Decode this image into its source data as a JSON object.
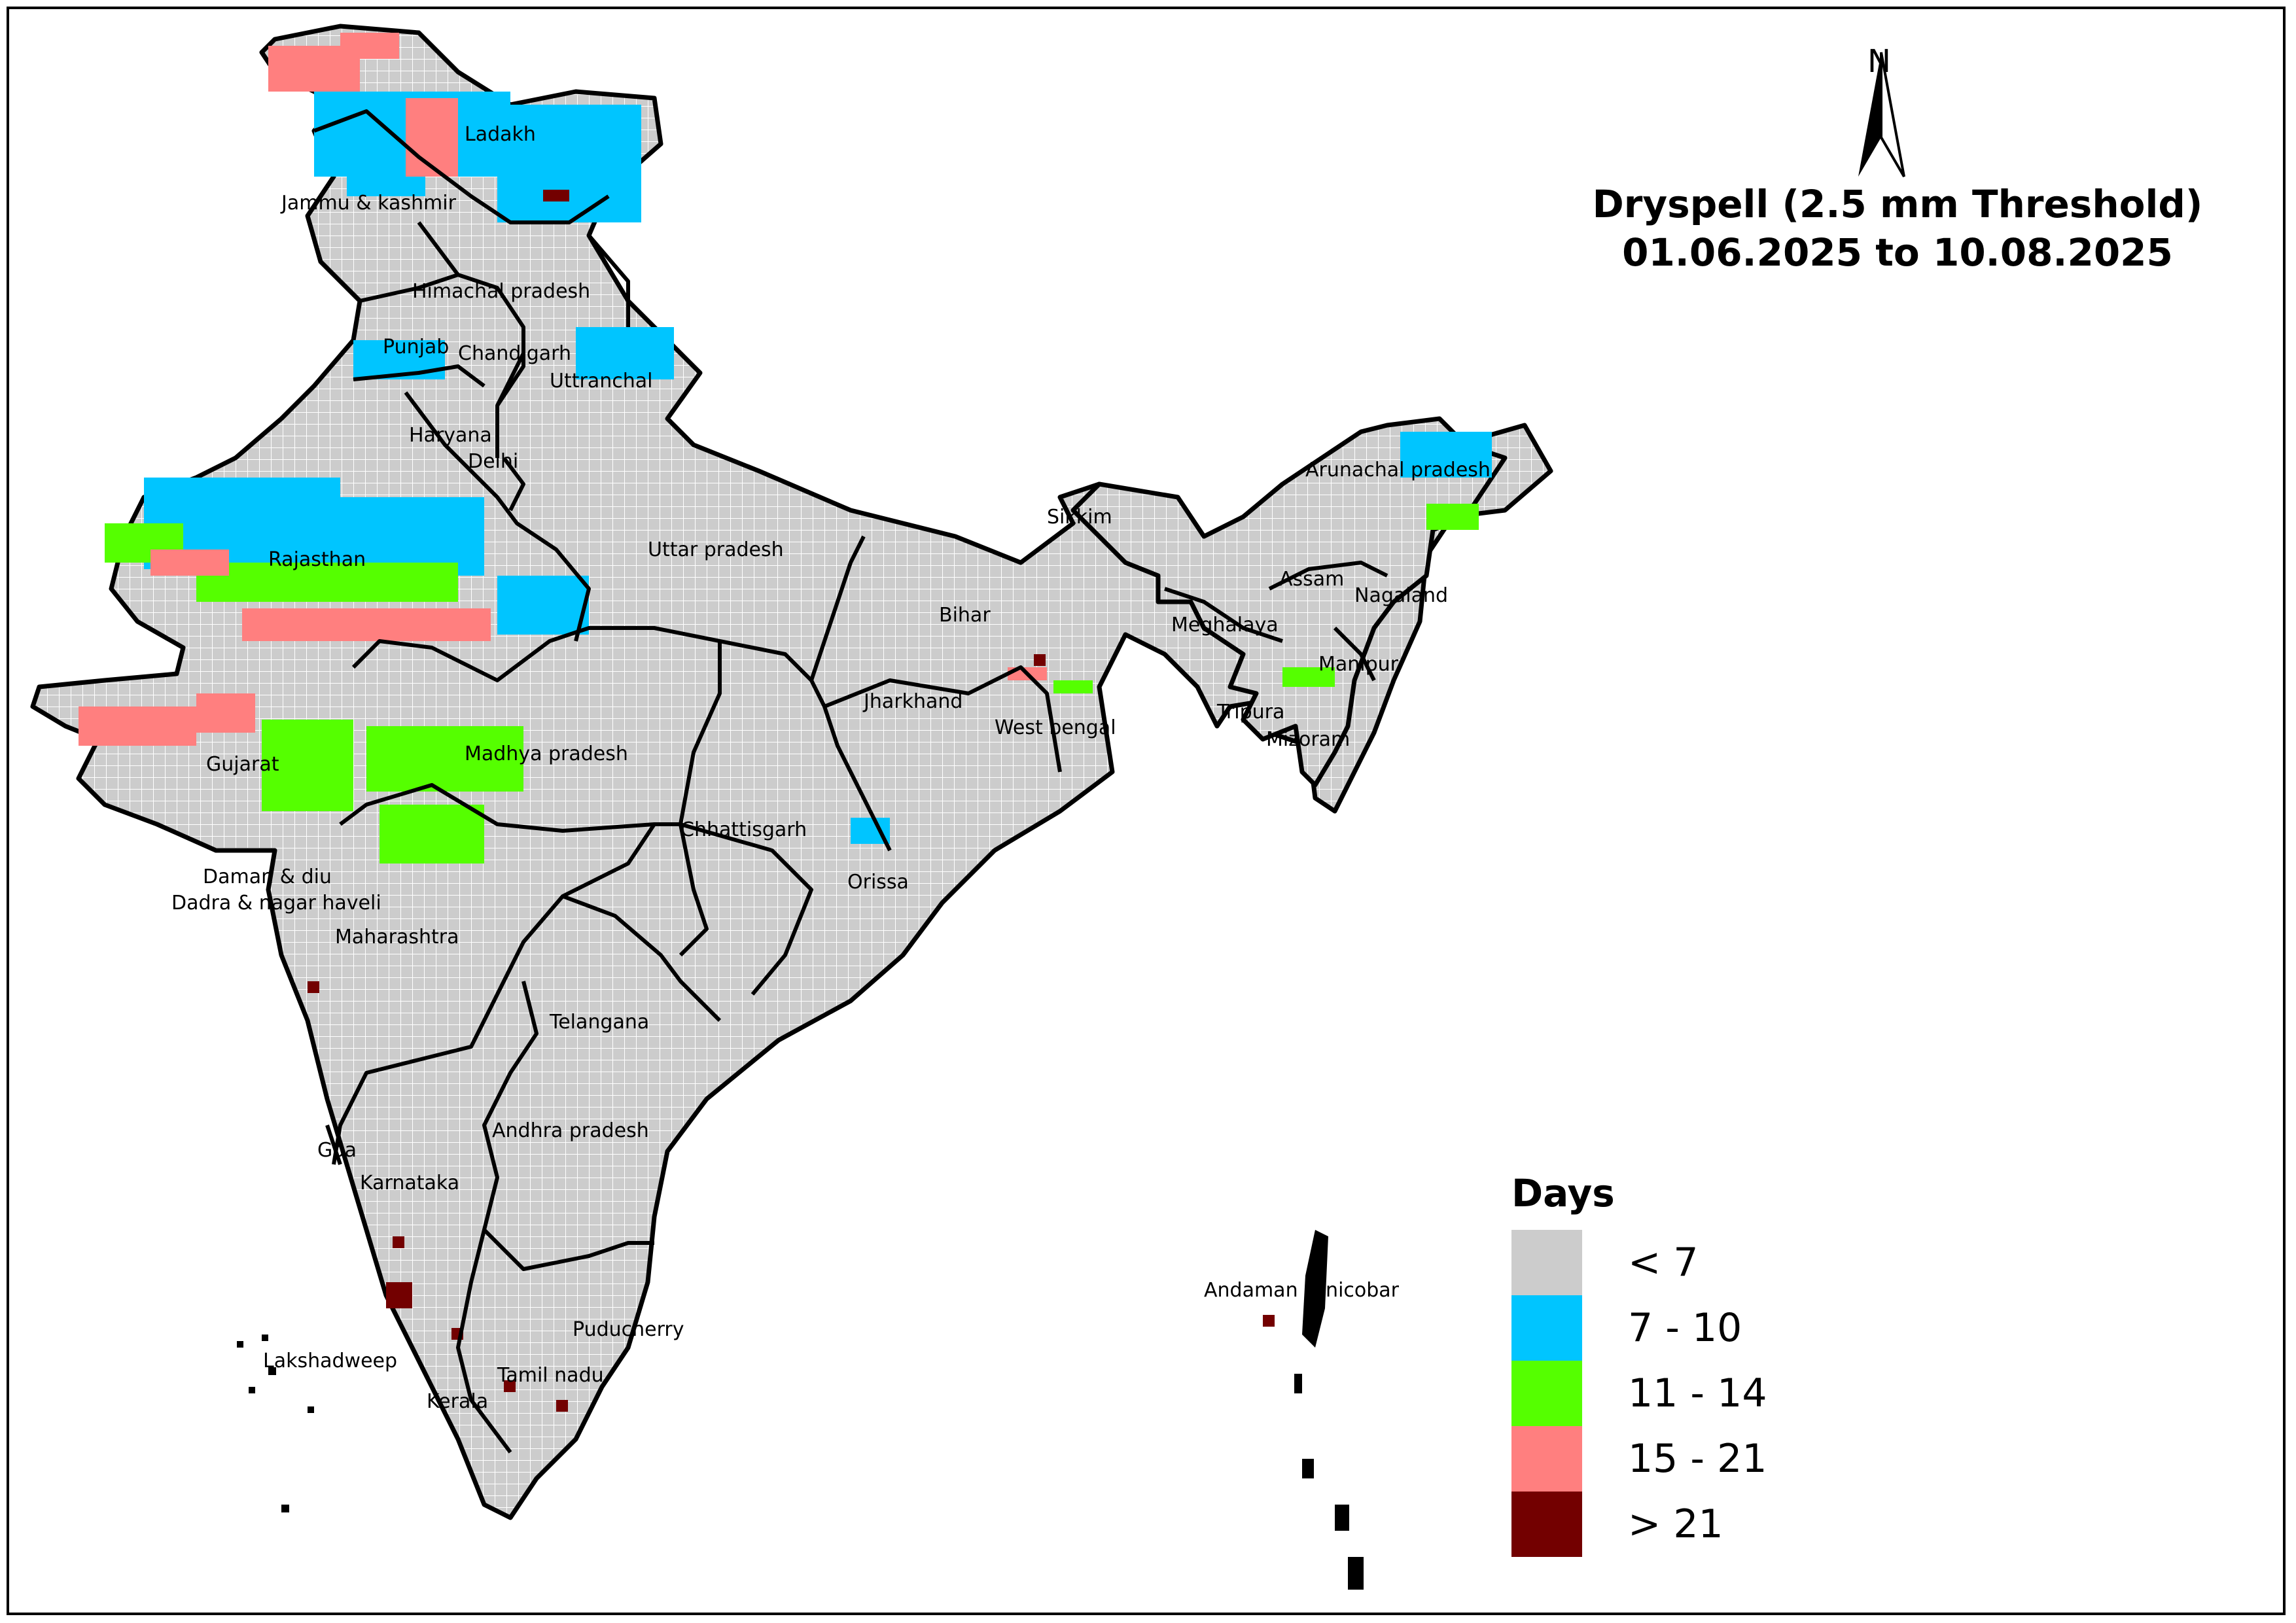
{
  "title": {
    "line1": "Dryspell (2.5 mm Threshold)",
    "line2": "01.06.2025 to 10.08.2025"
  },
  "north_arrow": {
    "label": "N"
  },
  "legend": {
    "title": "Days",
    "items": [
      {
        "label": "< 7",
        "color": "#cccccc"
      },
      {
        "label": "7 - 10",
        "color": "#00c5ff"
      },
      {
        "label": "11 - 14",
        "color": "#55ff00"
      },
      {
        "label": "15 - 21",
        "color": "#ff7f7f"
      },
      {
        "label": "> 21",
        "color": "#730000"
      }
    ]
  },
  "states": [
    "Ladakh",
    "Jammu & kashmir",
    "Himachal pradesh",
    "Punjab",
    "Chandigarh",
    "Uttranchal",
    "Haryana",
    "Delhi",
    "Rajasthan",
    "Uttar pradesh",
    "Bihar",
    "Sikkim",
    "Arunachal pradesh",
    "Assam",
    "Meghalaya",
    "Nagaland",
    "Manipur",
    "Tripura",
    "Mizoram",
    "Jharkhand",
    "West bengal",
    "Gujarat",
    "Madhya pradesh",
    "Chhattisgarh",
    "Orissa",
    "Daman & diu",
    "Dadra & nagar haveli",
    "Maharashtra",
    "Telangana",
    "Andhra pradesh",
    "Goa",
    "Karnataka",
    "Puducherry",
    "Lakshadweep",
    "Tamil nadu",
    "Kerala",
    "Andaman & nicobar"
  ]
}
